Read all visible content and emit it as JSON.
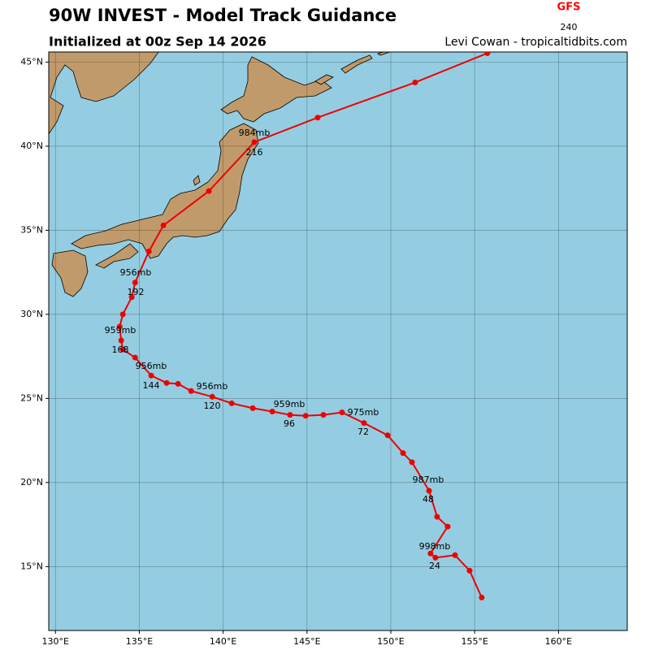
{
  "header": {
    "title": "90W INVEST - Model Track Guidance",
    "subtitle": "Initialized at 00z Sep 14 2026",
    "credit": "Levi Cowan - tropicaltidbits.com",
    "model": "GFS",
    "model_color": "#ff0000",
    "model_hours": 240
  },
  "chart_data": {
    "type": "track",
    "xlim": [
      129.6,
      164.1
    ],
    "ylim": [
      11.2,
      45.6
    ],
    "xticks": [
      {
        "value": 130,
        "label": "130°E"
      },
      {
        "value": 135,
        "label": "135°E"
      },
      {
        "value": 140,
        "label": "140°E"
      },
      {
        "value": 145,
        "label": "145°E"
      },
      {
        "value": 150,
        "label": "150°E"
      },
      {
        "value": 155,
        "label": "155°E"
      },
      {
        "value": 160,
        "label": "160°E"
      }
    ],
    "yticks": [
      {
        "value": 15,
        "label": "15°N"
      },
      {
        "value": 20,
        "label": "20°N"
      },
      {
        "value": 25,
        "label": "25°N"
      },
      {
        "value": 30,
        "label": "30°N"
      },
      {
        "value": 35,
        "label": "35°N"
      },
      {
        "value": 40,
        "label": "40°N"
      },
      {
        "value": 45,
        "label": "45°N"
      }
    ],
    "grid": true,
    "color": "#ee0000",
    "lon": [
      155.42,
      154.7,
      153.83,
      152.66,
      152.37,
      153.39,
      152.76,
      152.28,
      151.26,
      150.73,
      149.81,
      148.4,
      147.09,
      145.98,
      144.92,
      143.99,
      142.93,
      141.77,
      140.51,
      139.35,
      138.09,
      137.31,
      136.63,
      135.71,
      134.75,
      134.02,
      133.92,
      133.83,
      134.02,
      134.55,
      134.75,
      135.57,
      136.44,
      139.15,
      141.86,
      145.64,
      151.45,
      155.76
    ],
    "lat": [
      13.16,
      14.76,
      15.68,
      15.53,
      15.78,
      17.38,
      17.96,
      19.51,
      21.21,
      21.75,
      22.81,
      23.54,
      24.17,
      24.02,
      23.97,
      24.02,
      24.22,
      24.42,
      24.71,
      25.1,
      25.44,
      25.87,
      25.92,
      26.36,
      27.43,
      27.91,
      28.45,
      29.27,
      30.0,
      31.02,
      31.89,
      33.74,
      35.29,
      37.33,
      40.24,
      41.7,
      43.79,
      45.53
    ],
    "labels": [
      {
        "pressure": "998mb",
        "hour": 24
      },
      {
        "pressure": "987mb",
        "hour": 48
      },
      {
        "pressure": "975mb",
        "hour": 72
      },
      {
        "pressure": "959mb",
        "hour": 96
      },
      {
        "pressure": "956mb",
        "hour": 120
      },
      {
        "pressure": "956mb",
        "hour": 144
      },
      {
        "pressure": "959mb",
        "hour": 168
      },
      {
        "pressure": "956mb",
        "hour": 192
      },
      {
        "pressure": "984mb",
        "hour": 216
      }
    ]
  }
}
